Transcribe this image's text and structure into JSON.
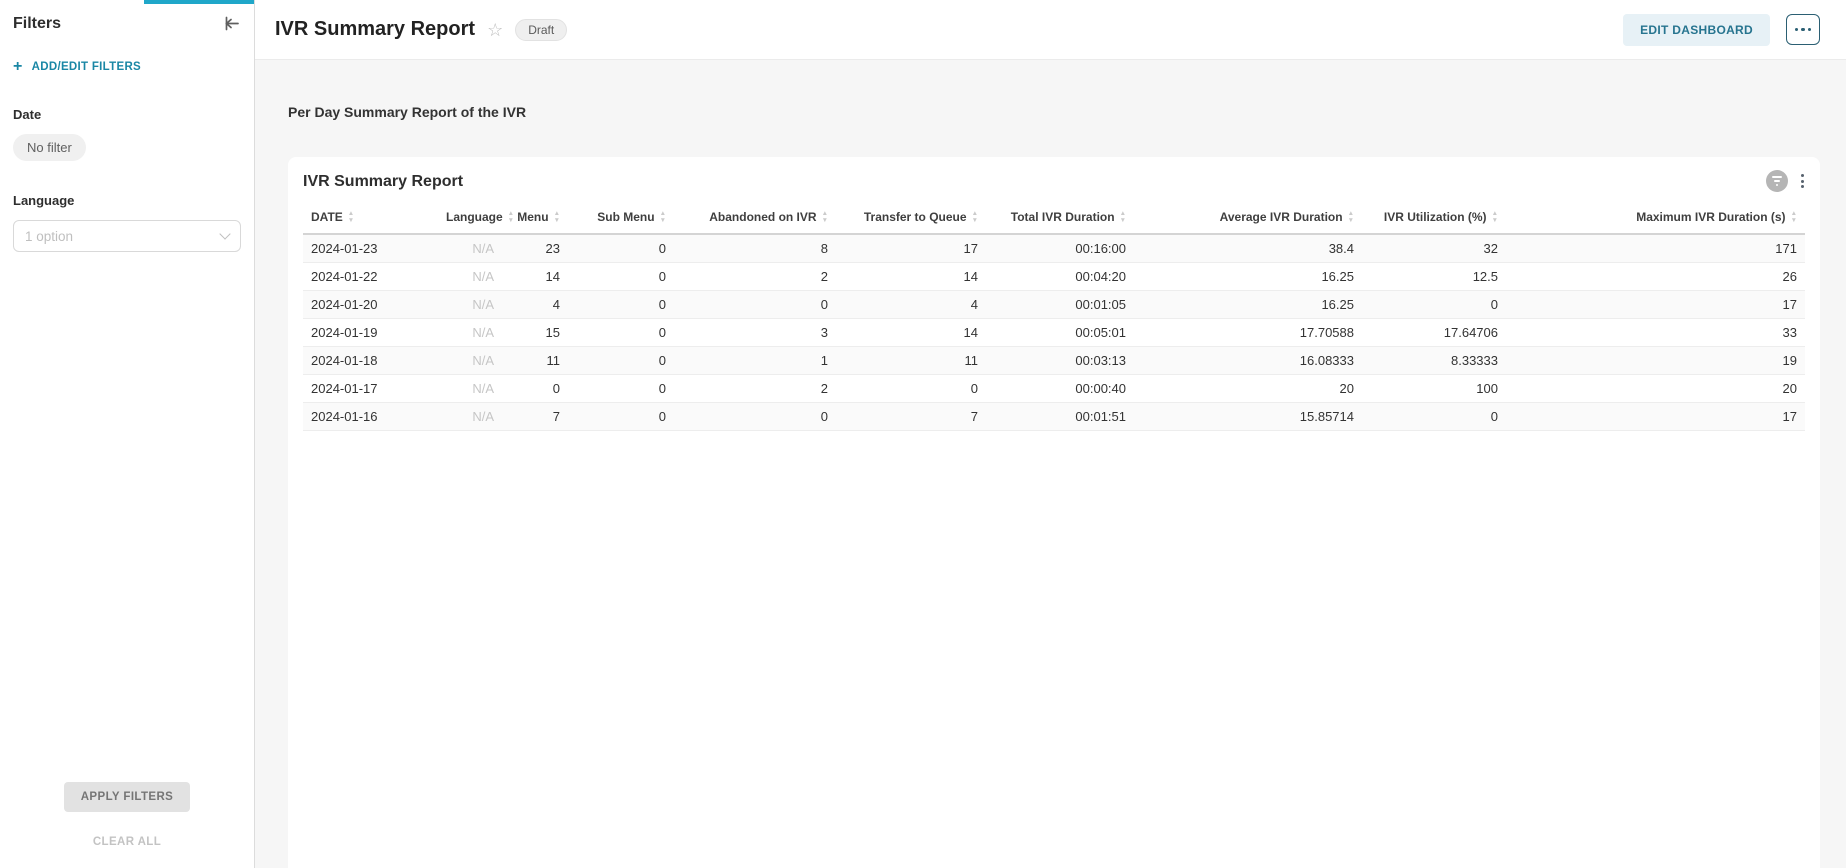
{
  "colors": {
    "accent": "#20a7c9",
    "link_teal": "#1a87a5",
    "edit_button_bg": "#e7f1f6",
    "edit_button_text": "#26748f",
    "page_background": "#f6f6f6"
  },
  "icons": {
    "collapse": "collapse-left-to-bar",
    "plus": "+",
    "star": "☆",
    "chevron_down": "caret-down",
    "more_horizontal": "three-dots-horizontal",
    "more_vertical": "three-dots-vertical",
    "filter_indicator": "funnel-in-gray-circle",
    "sort_up": "▲",
    "sort_down": "▼"
  },
  "sidebar": {
    "title": "Filters",
    "add_edit_label": "ADD/EDIT FILTERS",
    "date_filter": {
      "label": "Date",
      "value": "No filter"
    },
    "language_filter": {
      "label": "Language",
      "value": "1 option"
    },
    "apply_label": "APPLY FILTERS",
    "clear_label": "CLEAR ALL"
  },
  "header": {
    "title": "IVR Summary Report",
    "status_badge": "Draft",
    "edit_button_label": "EDIT DASHBOARD"
  },
  "content": {
    "description": "Per Day Summary Report of the IVR",
    "card": {
      "title": "IVR Summary Report",
      "columns": [
        {
          "label": "DATE",
          "align": "left"
        },
        {
          "label": "Language",
          "align": "right"
        },
        {
          "label": "Menu",
          "align": "right"
        },
        {
          "label": "Sub Menu",
          "align": "right"
        },
        {
          "label": "Abandoned on IVR",
          "align": "right"
        },
        {
          "label": "Transfer to Queue",
          "align": "right"
        },
        {
          "label": "Total IVR Duration",
          "align": "right"
        },
        {
          "label": "Average IVR Duration",
          "align": "right"
        },
        {
          "label": "IVR Utilization (%)",
          "align": "right"
        },
        {
          "label": "Maximum IVR Duration (s)",
          "align": "right"
        }
      ],
      "rows": [
        [
          "2024-01-23",
          "N/A",
          "23",
          "0",
          "8",
          "17",
          "00:16:00",
          "38.4",
          "32",
          "171"
        ],
        [
          "2024-01-22",
          "N/A",
          "14",
          "0",
          "2",
          "14",
          "00:04:20",
          "16.25",
          "12.5",
          "26"
        ],
        [
          "2024-01-20",
          "N/A",
          "4",
          "0",
          "0",
          "4",
          "00:01:05",
          "16.25",
          "0",
          "17"
        ],
        [
          "2024-01-19",
          "N/A",
          "15",
          "0",
          "3",
          "14",
          "00:05:01",
          "17.70588",
          "17.64706",
          "33"
        ],
        [
          "2024-01-18",
          "N/A",
          "11",
          "0",
          "1",
          "11",
          "00:03:13",
          "16.08333",
          "8.33333",
          "19"
        ],
        [
          "2024-01-17",
          "N/A",
          "0",
          "0",
          "2",
          "0",
          "00:00:40",
          "20",
          "100",
          "20"
        ],
        [
          "2024-01-16",
          "N/A",
          "7",
          "0",
          "0",
          "7",
          "00:01:51",
          "15.85714",
          "0",
          "17"
        ]
      ]
    }
  }
}
